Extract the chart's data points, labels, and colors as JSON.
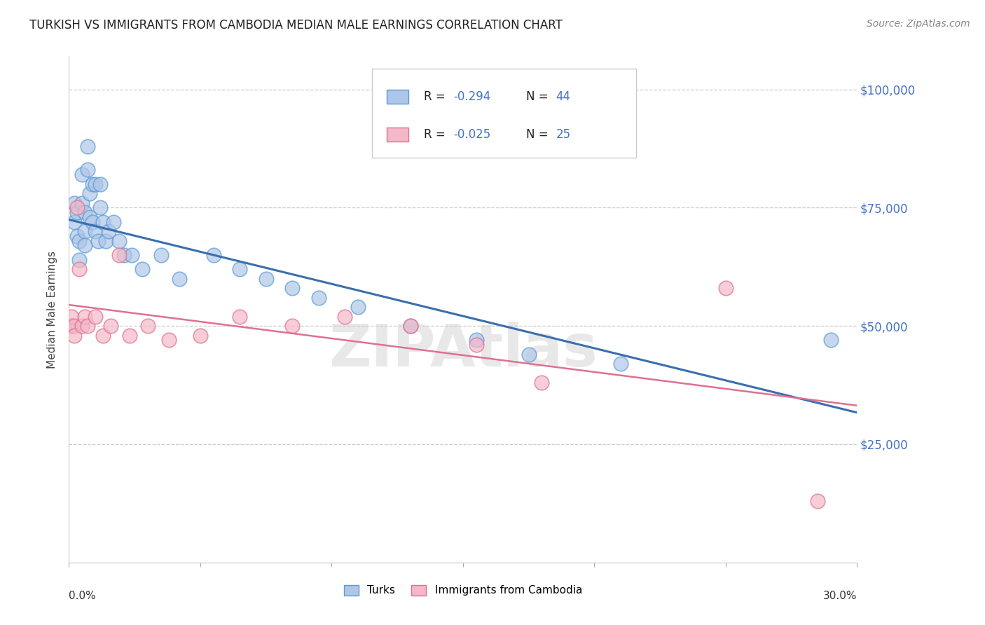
{
  "title": "TURKISH VS IMMIGRANTS FROM CAMBODIA MEDIAN MALE EARNINGS CORRELATION CHART",
  "source": "Source: ZipAtlas.com",
  "ylabel": "Median Male Earnings",
  "yticks": [
    0,
    25000,
    50000,
    75000,
    100000
  ],
  "ytick_labels": [
    "",
    "$25,000",
    "$50,000",
    "$75,000",
    "$100,000"
  ],
  "xlim": [
    0.0,
    0.3
  ],
  "ylim": [
    0,
    107000
  ],
  "legend_blue_r": "R = -0.294",
  "legend_blue_n": "N = 44",
  "legend_pink_r": "R = -0.025",
  "legend_pink_n": "N = 25",
  "legend_label_blue": "Turks",
  "legend_label_pink": "Immigrants from Cambodia",
  "blue_fill": "#aec6e8",
  "blue_edge": "#5b9bd5",
  "pink_fill": "#f4b8c8",
  "pink_edge": "#e07090",
  "blue_line": "#3a6fad",
  "pink_line": "#e07090",
  "background_color": "#ffffff",
  "grid_color": "#cccccc",
  "title_color": "#222222",
  "axis_label_color": "#444444",
  "right_tick_color": "#4472c4",
  "watermark": "ZIPAtlas",
  "turks_x": [
    0.001,
    0.002,
    0.002,
    0.003,
    0.003,
    0.004,
    0.004,
    0.005,
    0.005,
    0.006,
    0.006,
    0.006,
    0.007,
    0.007,
    0.008,
    0.008,
    0.009,
    0.009,
    0.01,
    0.01,
    0.011,
    0.012,
    0.012,
    0.013,
    0.014,
    0.015,
    0.017,
    0.019,
    0.021,
    0.024,
    0.028,
    0.035,
    0.042,
    0.055,
    0.065,
    0.075,
    0.085,
    0.095,
    0.11,
    0.13,
    0.155,
    0.175,
    0.21,
    0.29
  ],
  "turks_y": [
    50000,
    76000,
    72000,
    74000,
    69000,
    68000,
    64000,
    82000,
    76000,
    74000,
    70000,
    67000,
    88000,
    83000,
    78000,
    73000,
    80000,
    72000,
    80000,
    70000,
    68000,
    80000,
    75000,
    72000,
    68000,
    70000,
    72000,
    68000,
    65000,
    65000,
    62000,
    65000,
    60000,
    65000,
    62000,
    60000,
    58000,
    56000,
    54000,
    50000,
    47000,
    44000,
    42000,
    47000
  ],
  "cambodia_x": [
    0.001,
    0.001,
    0.002,
    0.002,
    0.003,
    0.004,
    0.005,
    0.006,
    0.007,
    0.01,
    0.013,
    0.016,
    0.019,
    0.023,
    0.03,
    0.038,
    0.05,
    0.065,
    0.085,
    0.105,
    0.13,
    0.155,
    0.18,
    0.25,
    0.285
  ],
  "cambodia_y": [
    50000,
    52000,
    50000,
    48000,
    75000,
    62000,
    50000,
    52000,
    50000,
    52000,
    48000,
    50000,
    65000,
    48000,
    50000,
    47000,
    48000,
    52000,
    50000,
    52000,
    50000,
    46000,
    38000,
    58000,
    13000
  ]
}
